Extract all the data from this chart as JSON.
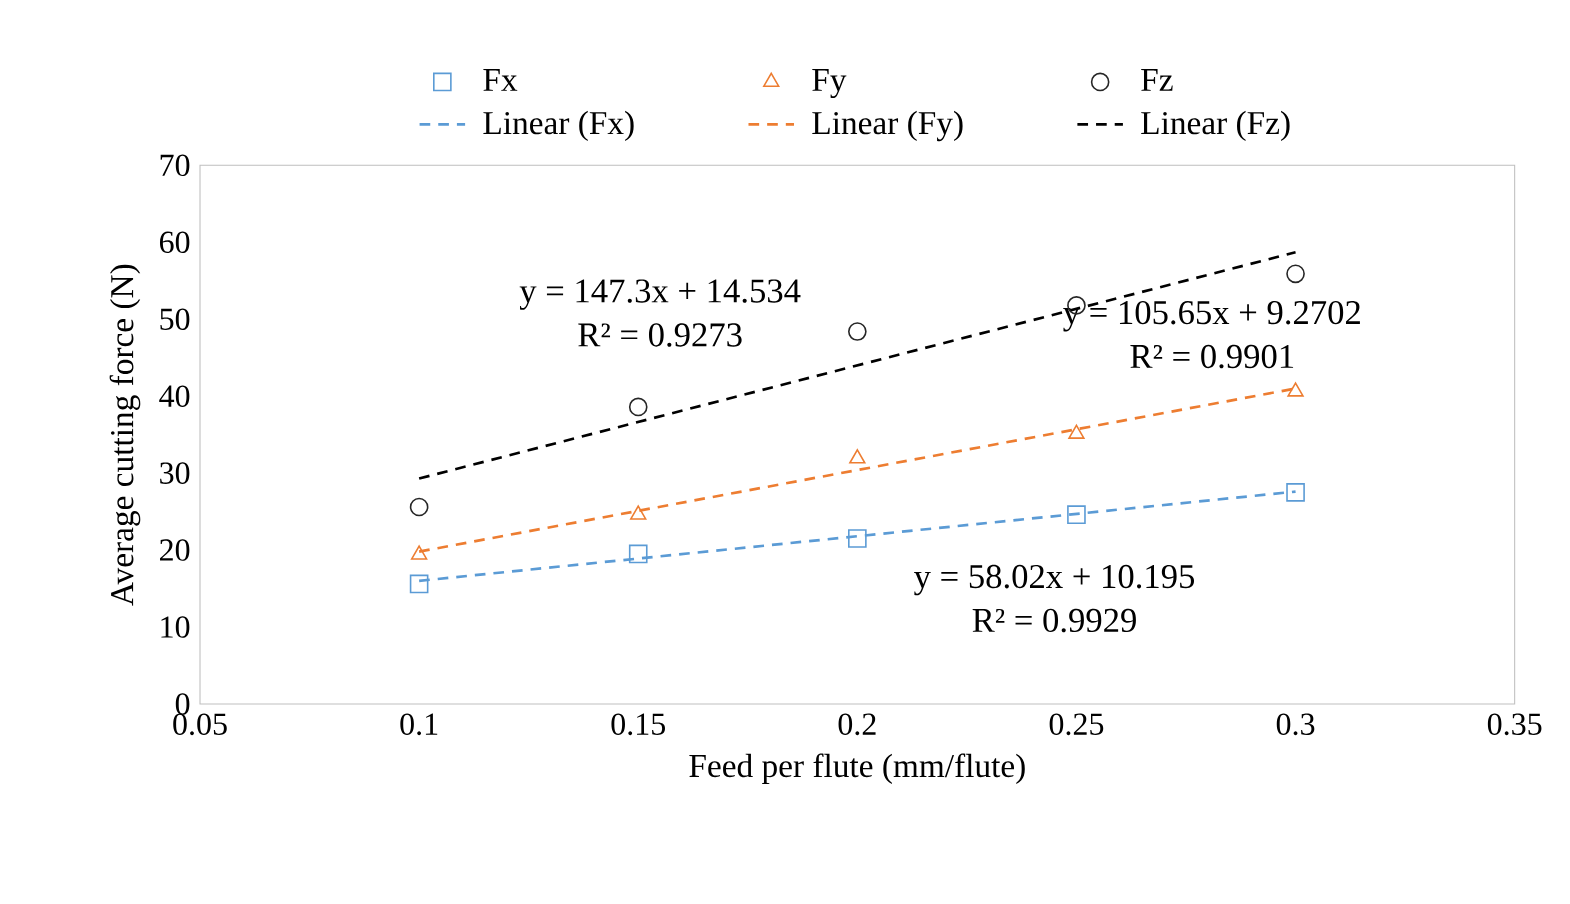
{
  "chart_data": {
    "type": "scatter",
    "xlabel": "Feed per flute (mm/flute)",
    "ylabel": "Average cutting force (N)",
    "xlim": [
      0.05,
      0.35
    ],
    "xticks": [
      0.05,
      0.1,
      0.15,
      0.2,
      0.25,
      0.3,
      0.35
    ],
    "ylim": [
      0,
      70
    ],
    "yticks": [
      0,
      10,
      20,
      30,
      40,
      50,
      60,
      70
    ],
    "grid": false,
    "legend": "top",
    "series": [
      {
        "name": "Fx",
        "marker": "square",
        "color": "#5b9bd5",
        "x": [
          0.1,
          0.15,
          0.2,
          0.25,
          0.3
        ],
        "values": [
          15.6,
          19.5,
          21.5,
          24.6,
          27.5
        ]
      },
      {
        "name": "Fy",
        "marker": "triangle",
        "color": "#ed7d31",
        "x": [
          0.1,
          0.15,
          0.2,
          0.25,
          0.3
        ],
        "values": [
          19.4,
          24.6,
          31.9,
          35.1,
          40.6
        ]
      },
      {
        "name": "Fz",
        "marker": "circle",
        "color": "#262626",
        "x": [
          0.1,
          0.15,
          0.2,
          0.25,
          0.3
        ],
        "values": [
          25.6,
          38.6,
          48.4,
          51.8,
          55.9
        ]
      },
      {
        "name": "Linear (Fx)",
        "type": "line",
        "line_style": "dashed",
        "color": "#5b9bd5",
        "x": [
          0.1,
          0.3
        ],
        "values": [
          16.0,
          27.6
        ]
      },
      {
        "name": "Linear (Fy)",
        "type": "line",
        "line_style": "dashed",
        "color": "#ed7d31",
        "x": [
          0.1,
          0.3
        ],
        "values": [
          19.8,
          41.0
        ]
      },
      {
        "name": "Linear (Fz)",
        "type": "line",
        "line_style": "dashed",
        "color": "#000000",
        "x": [
          0.1,
          0.3
        ],
        "values": [
          29.3,
          58.7
        ]
      }
    ],
    "annotations": [
      "y = 147.3x + 14.534",
      "R² = 0.9273",
      "y = 105.65x + 9.2702",
      "R² = 0.9901",
      "y = 58.02x + 10.195",
      "R² = 0.9929"
    ]
  }
}
